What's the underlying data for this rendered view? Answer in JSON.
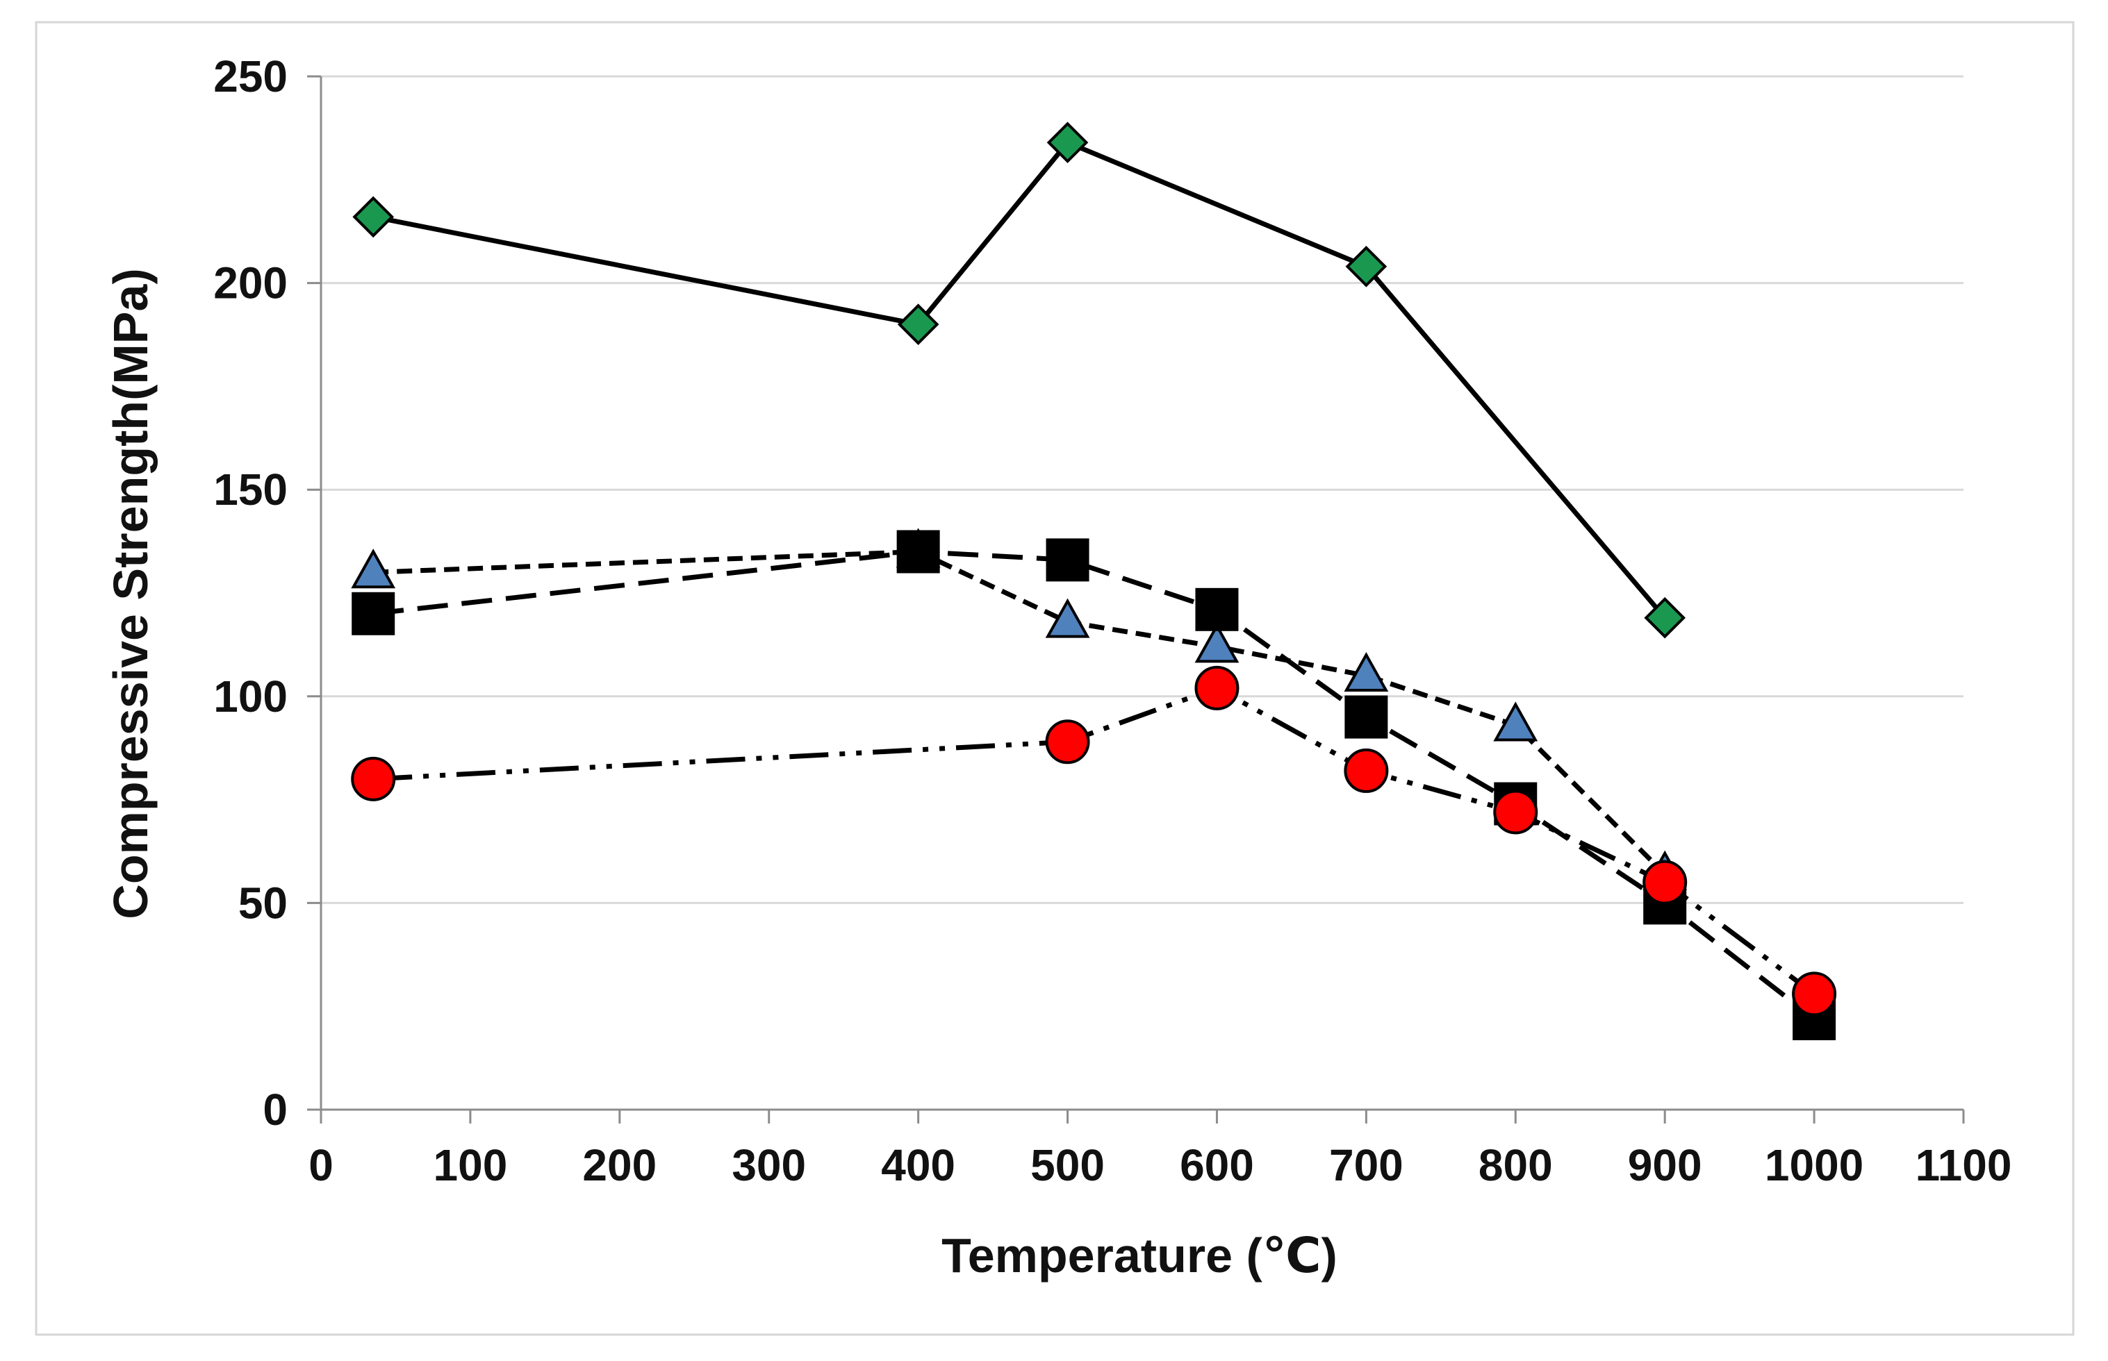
{
  "chart_data": {
    "type": "line",
    "title": "",
    "xlabel": "Temperature (℃)",
    "ylabel": "Compressive Strength(MPa)",
    "xlim": [
      0,
      1100
    ],
    "ylim": [
      0,
      250
    ],
    "xticks": [
      0,
      100,
      200,
      300,
      400,
      500,
      600,
      700,
      800,
      900,
      1000,
      1100
    ],
    "yticks": [
      0,
      50,
      100,
      150,
      200,
      250
    ],
    "grid": "horizontal",
    "legend": "none",
    "series": [
      {
        "name": "series-diamond",
        "marker": "diamond",
        "marker_color": "#1a9850",
        "line_style": "solid",
        "x": [
          35,
          400,
          500,
          700,
          900
        ],
        "values": [
          216,
          190,
          234,
          204,
          119
        ]
      },
      {
        "name": "series-triangle",
        "marker": "triangle",
        "marker_color": "#4f81bd",
        "line_style": "short-dash",
        "x": [
          35,
          400,
          500,
          600,
          700,
          800,
          900
        ],
        "values": [
          130,
          135,
          118,
          112,
          105,
          93,
          57
        ]
      },
      {
        "name": "series-square",
        "marker": "square",
        "marker_color": "#000000",
        "line_style": "long-dash",
        "x": [
          35,
          400,
          500,
          600,
          700,
          800,
          900,
          1000
        ],
        "values": [
          120,
          135,
          133,
          121,
          95,
          74,
          50,
          22
        ]
      },
      {
        "name": "series-circle",
        "marker": "circle",
        "marker_color": "#ff0000",
        "line_style": "dash-dot-dot",
        "x": [
          35,
          500,
          600,
          700,
          800,
          900,
          1000
        ],
        "values": [
          80,
          89,
          102,
          82,
          72,
          55,
          28
        ]
      }
    ]
  }
}
